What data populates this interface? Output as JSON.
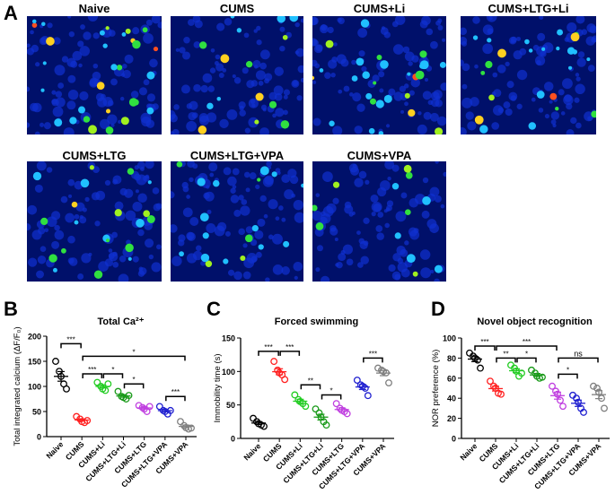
{
  "panel_a": {
    "letter": "A",
    "images": [
      {
        "label": "Naive",
        "density": 1.0
      },
      {
        "label": "CUMS",
        "density": 0.5
      },
      {
        "label": "CUMS+Li",
        "density": 0.9
      },
      {
        "label": "CUMS+LTG+Li",
        "density": 0.8
      },
      {
        "label": "CUMS+LTG",
        "density": 0.7
      },
      {
        "label": "CUMS+LTG+VPA",
        "density": 0.6
      },
      {
        "label": "CUMS+VPA",
        "density": 0.4
      }
    ]
  },
  "chart_data": [
    {
      "letter": "B",
      "type": "scatter",
      "title": "Total Ca²⁺",
      "ylabel": "Total integrated calcium (ΔF/F₀)",
      "ylim": [
        0,
        200
      ],
      "yticks": [
        0,
        50,
        100,
        150,
        200
      ],
      "categories": [
        "Naive",
        "CUMS",
        "CUMS+Li",
        "CUMS+LTG+Li",
        "CUMS+LTG",
        "CUMS+LTG+VPA",
        "CUMS+VPA"
      ],
      "series": [
        {
          "name": "Naive",
          "color": "#000000",
          "values": [
            150,
            130,
            120,
            105,
            95
          ]
        },
        {
          "name": "CUMS",
          "color": "#ff2020",
          "values": [
            40,
            35,
            30,
            28,
            32
          ]
        },
        {
          "name": "CUMS+Li",
          "color": "#22cc22",
          "values": [
            108,
            100,
            95,
            92,
            105
          ]
        },
        {
          "name": "CUMS+LTG+Li",
          "color": "#1a9a1a",
          "values": [
            90,
            80,
            78,
            75,
            82
          ]
        },
        {
          "name": "CUMS+LTG",
          "color": "#c040e0",
          "values": [
            62,
            58,
            55,
            50,
            60
          ]
        },
        {
          "name": "CUMS+LTG+VPA",
          "color": "#2020d0",
          "values": [
            60,
            52,
            50,
            45,
            52
          ]
        },
        {
          "name": "CUMS+VPA",
          "color": "#808080",
          "values": [
            30,
            22,
            18,
            15,
            17
          ]
        }
      ],
      "brackets": [
        {
          "from": 0,
          "to": 1,
          "label": "***",
          "y": 185
        },
        {
          "from": 1,
          "to": 6,
          "label": "*",
          "y": 160
        },
        {
          "from": 1,
          "to": 2,
          "label": "***",
          "y": 125
        },
        {
          "from": 2,
          "to": 3,
          "label": "*",
          "y": 125
        },
        {
          "from": 3,
          "to": 4,
          "label": "*",
          "y": 105
        },
        {
          "from": 5,
          "to": 6,
          "label": "***",
          "y": 80
        }
      ]
    },
    {
      "letter": "C",
      "type": "scatter",
      "title": "Forced swimming",
      "ylabel": "Immobility time (s)",
      "ylim": [
        0,
        150
      ],
      "yticks": [
        0,
        50,
        100,
        150
      ],
      "categories": [
        "Naive",
        "CUMS",
        "CUMS+Li",
        "CUMS+LTG+Li",
        "CUMS+LTG",
        "CUMS+LTG+VPA",
        "CUMS+VPA"
      ],
      "series": [
        {
          "name": "Naive",
          "color": "#000000",
          "values": [
            30,
            25,
            22,
            20,
            18
          ]
        },
        {
          "name": "CUMS",
          "color": "#ff2020",
          "values": [
            115,
            102,
            98,
            95,
            88
          ]
        },
        {
          "name": "CUMS+Li",
          "color": "#22cc22",
          "values": [
            65,
            58,
            55,
            52,
            48
          ]
        },
        {
          "name": "CUMS+LTG+Li",
          "color": "#1a9a1a",
          "values": [
            44,
            38,
            32,
            25,
            20
          ]
        },
        {
          "name": "CUMS+LTG",
          "color": "#c040e0",
          "values": [
            52,
            45,
            42,
            40,
            37
          ]
        },
        {
          "name": "CUMS+LTG+VPA",
          "color": "#2020d0",
          "values": [
            87,
            80,
            78,
            75,
            64
          ]
        },
        {
          "name": "CUMS+VPA",
          "color": "#808080",
          "values": [
            105,
            102,
            100,
            98,
            83
          ]
        }
      ],
      "brackets": [
        {
          "from": 0,
          "to": 1,
          "label": "***",
          "y": 130
        },
        {
          "from": 1,
          "to": 2,
          "label": "***",
          "y": 130
        },
        {
          "from": 2,
          "to": 3,
          "label": "**",
          "y": 80
        },
        {
          "from": 3,
          "to": 4,
          "label": "*",
          "y": 65
        },
        {
          "from": 5,
          "to": 6,
          "label": "***",
          "y": 120
        }
      ]
    },
    {
      "letter": "D",
      "type": "scatter",
      "title": "Novel object recognition",
      "ylabel": "NOR preference  (%)",
      "ylim": [
        0,
        100
      ],
      "yticks": [
        0,
        20,
        40,
        60,
        80,
        100
      ],
      "categories": [
        "Naive",
        "CUMS",
        "CUMS+Li",
        "CUMS+LTG+Li",
        "CUMS+LTG",
        "CUMS+LTG+VPA",
        "CUMS+VPA"
      ],
      "series": [
        {
          "name": "Naive",
          "color": "#000000",
          "values": [
            85,
            82,
            80,
            78,
            70
          ]
        },
        {
          "name": "CUMS",
          "color": "#ff2020",
          "values": [
            57,
            52,
            50,
            45,
            44
          ]
        },
        {
          "name": "CUMS+Li",
          "color": "#22cc22",
          "values": [
            73,
            70,
            67,
            62,
            65
          ]
        },
        {
          "name": "CUMS+LTG+Li",
          "color": "#1a9a1a",
          "values": [
            68,
            65,
            62,
            60,
            61
          ]
        },
        {
          "name": "CUMS+LTG",
          "color": "#c040e0",
          "values": [
            52,
            47,
            44,
            38,
            32
          ]
        },
        {
          "name": "CUMS+LTG+VPA",
          "color": "#2020d0",
          "values": [
            43,
            40,
            36,
            30,
            26
          ]
        },
        {
          "name": "CUMS+VPA",
          "color": "#808080",
          "values": [
            52,
            50,
            46,
            40,
            30
          ]
        }
      ],
      "brackets": [
        {
          "from": 0,
          "to": 1,
          "label": "***",
          "y": 92
        },
        {
          "from": 1,
          "to": 4,
          "label": "***",
          "y": 92
        },
        {
          "from": 1,
          "to": 2,
          "label": "**",
          "y": 80
        },
        {
          "from": 2,
          "to": 3,
          "label": "*",
          "y": 80
        },
        {
          "from": 4,
          "to": 6,
          "label": "ns",
          "y": 80
        },
        {
          "from": 4,
          "to": 5,
          "label": "*",
          "y": 64
        }
      ]
    }
  ]
}
